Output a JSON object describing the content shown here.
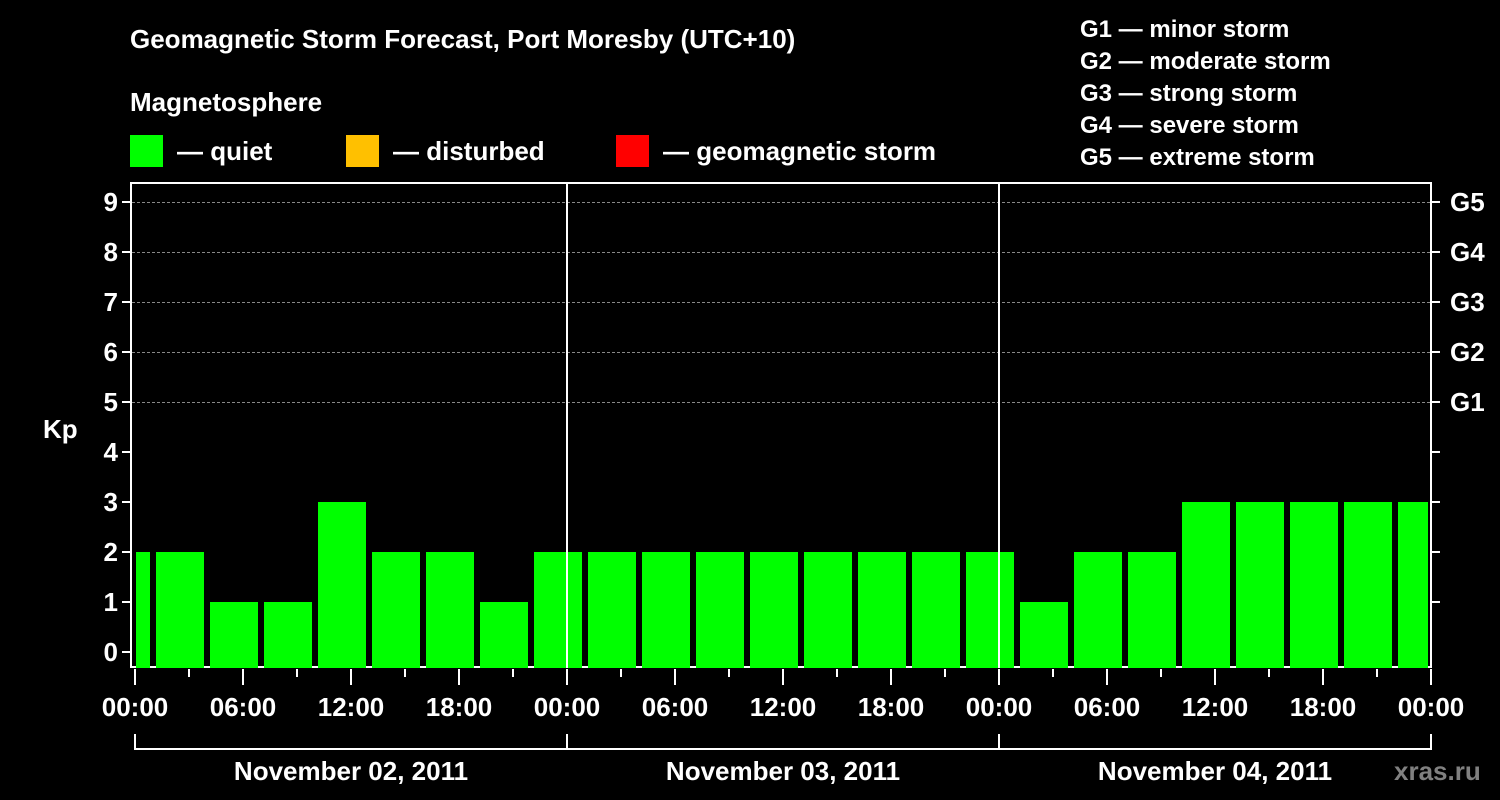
{
  "header": {
    "title": "Geomagnetic Storm Forecast, Port Moresby (UTC+10)",
    "subtitle": "Magnetosphere"
  },
  "legend": {
    "items": [
      {
        "label": "— quiet",
        "color": "#00FF00"
      },
      {
        "label": "— disturbed",
        "color": "#FFC000"
      },
      {
        "label": "— geomagnetic storm",
        "color": "#FF0000"
      }
    ]
  },
  "g_scale": [
    "G1 — minor storm",
    "G2 — moderate storm",
    "G3 — strong storm",
    "G4 — severe storm",
    "G5 — extreme storm"
  ],
  "axis": {
    "ylabel": "Kp",
    "y_ticks": [
      "0",
      "1",
      "2",
      "3",
      "4",
      "5",
      "6",
      "7",
      "8",
      "9"
    ],
    "right_ticks": [
      "G1",
      "G2",
      "G3",
      "G4",
      "G5"
    ],
    "x_ticks": [
      "00:00",
      "06:00",
      "12:00",
      "18:00",
      "00:00",
      "06:00",
      "12:00",
      "18:00",
      "00:00",
      "06:00",
      "12:00",
      "18:00",
      "00:00"
    ],
    "dates": [
      "November 02, 2011",
      "November 03, 2011",
      "November 04, 2011"
    ]
  },
  "watermark": "xras.ru",
  "chart_data": {
    "type": "bar",
    "title": "Geomagnetic Storm Forecast, Port Moresby (UTC+10)",
    "xlabel": "",
    "ylabel": "Kp",
    "ylim": [
      0,
      9
    ],
    "grid": "dashed horizontal at Kp 5-9",
    "legend": [
      "quiet",
      "disturbed",
      "geomagnetic storm"
    ],
    "right_axis": {
      "5": "G1",
      "6": "G2",
      "7": "G3",
      "8": "G4",
      "9": "G5"
    },
    "categories": [
      "Nov 02 ~00:00",
      "Nov 02 ~02:00",
      "Nov 02 ~05:00",
      "Nov 02 ~08:00",
      "Nov 02 ~11:00",
      "Nov 02 ~14:00",
      "Nov 02 ~17:00",
      "Nov 02 ~20:00",
      "Nov 02 ~23:00",
      "Nov 03 ~02:00",
      "Nov 03 ~05:00",
      "Nov 03 ~08:00",
      "Nov 03 ~11:00",
      "Nov 03 ~14:00",
      "Nov 03 ~17:00",
      "Nov 03 ~20:00",
      "Nov 03 ~23:00",
      "Nov 04 ~02:00",
      "Nov 04 ~05:00",
      "Nov 04 ~08:00",
      "Nov 04 ~11:00",
      "Nov 04 ~14:00",
      "Nov 04 ~17:00",
      "Nov 04 ~20:00",
      "Nov 04 ~23:00"
    ],
    "values": [
      2,
      2,
      1,
      1,
      3,
      2,
      2,
      1,
      2,
      2,
      2,
      2,
      2,
      2,
      2,
      2,
      2,
      1,
      2,
      2,
      3,
      3,
      3,
      3,
      3
    ],
    "colors": "all bars quiet (#00FF00)"
  }
}
